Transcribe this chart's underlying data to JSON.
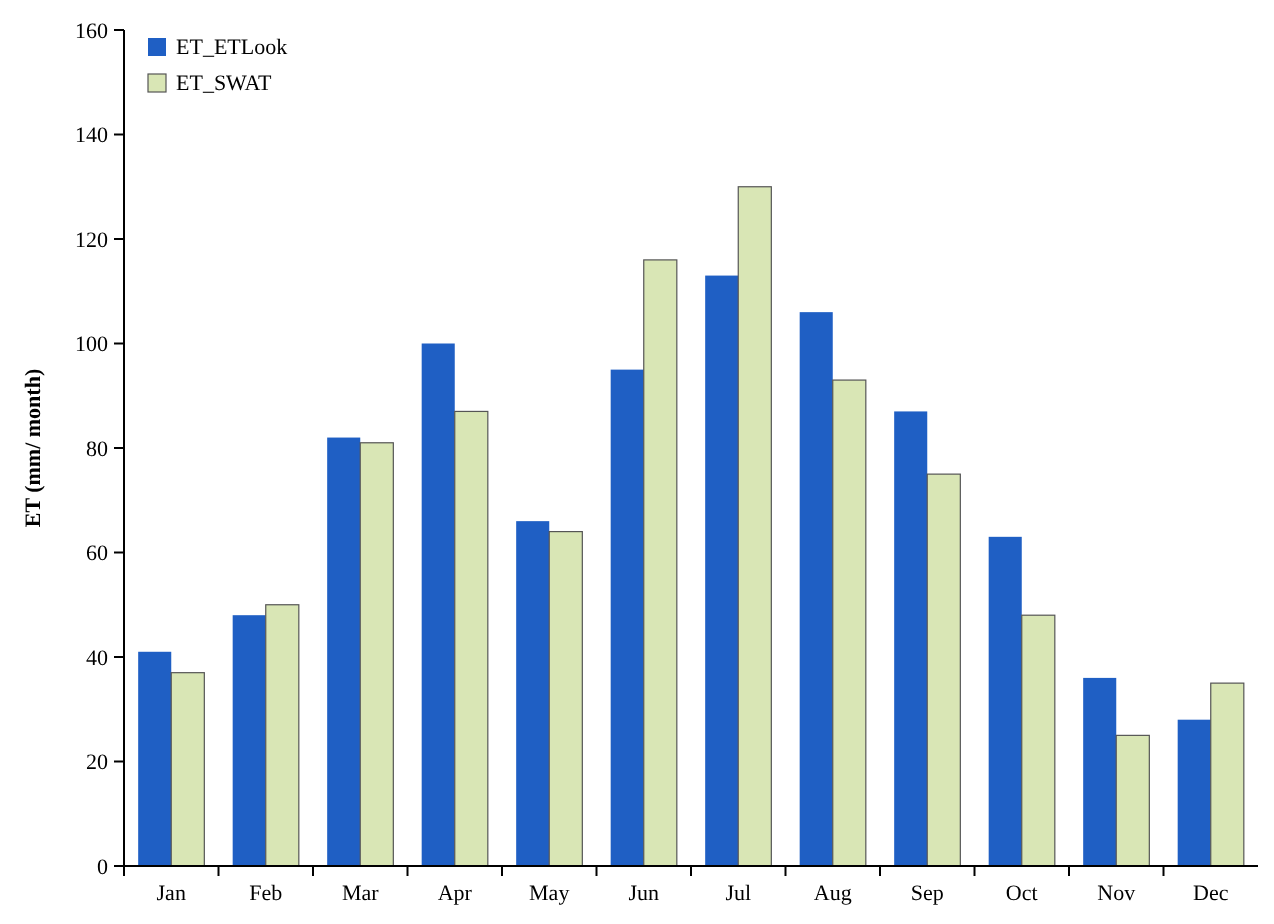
{
  "chart_data": {
    "type": "bar",
    "ylabel": "ET (mm/ month)",
    "categories": [
      "Jan",
      "Feb",
      "Mar",
      "Apr",
      "May",
      "Jun",
      "Jul",
      "Aug",
      "Sep",
      "Oct",
      "Nov",
      "Dec"
    ],
    "series": [
      {
        "name": "ET_ETLook",
        "color": "#1f5fc4",
        "values": [
          41,
          48,
          82,
          100,
          66,
          95,
          113,
          106,
          87,
          63,
          36,
          28
        ]
      },
      {
        "name": "ET_SWAT",
        "color": "#d9e6b5",
        "values": [
          37,
          50,
          81,
          87,
          64,
          116,
          130,
          93,
          75,
          48,
          25,
          35
        ]
      }
    ],
    "ylim": [
      0,
      160
    ],
    "yticks": [
      0,
      20,
      40,
      60,
      80,
      100,
      120,
      140,
      160
    ],
    "grid": false,
    "legend": "top left"
  }
}
